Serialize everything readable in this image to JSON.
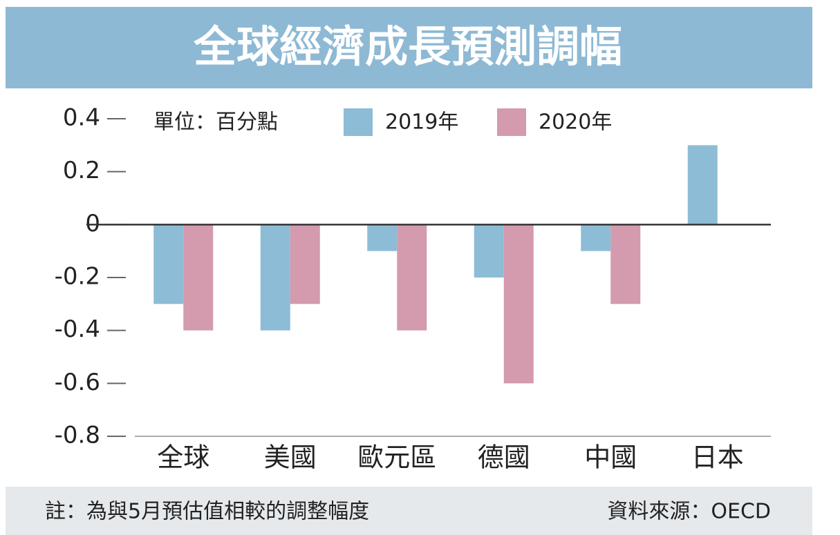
{
  "chart_data": {
    "type": "bar",
    "title": "全球經濟成長預測調幅",
    "unit": "單位：百分點",
    "categories": [
      "全球",
      "美國",
      "歐元區",
      "德國",
      "中國",
      "日本"
    ],
    "series": [
      {
        "name": "2019年",
        "color": "#8dbcd6",
        "values": [
          -0.3,
          -0.4,
          -0.1,
          -0.2,
          -0.1,
          0.3
        ]
      },
      {
        "name": "2020年",
        "color": "#d49aae",
        "values": [
          -0.4,
          -0.3,
          -0.4,
          -0.6,
          -0.3,
          0
        ]
      }
    ],
    "ylim": [
      -0.8,
      0.4
    ],
    "yticks": [
      0.4,
      0.2,
      0,
      -0.2,
      -0.4,
      -0.6,
      -0.8
    ],
    "note": "註：為與5月預估值相較的調整幅度",
    "source": "資料來源：OECD"
  }
}
